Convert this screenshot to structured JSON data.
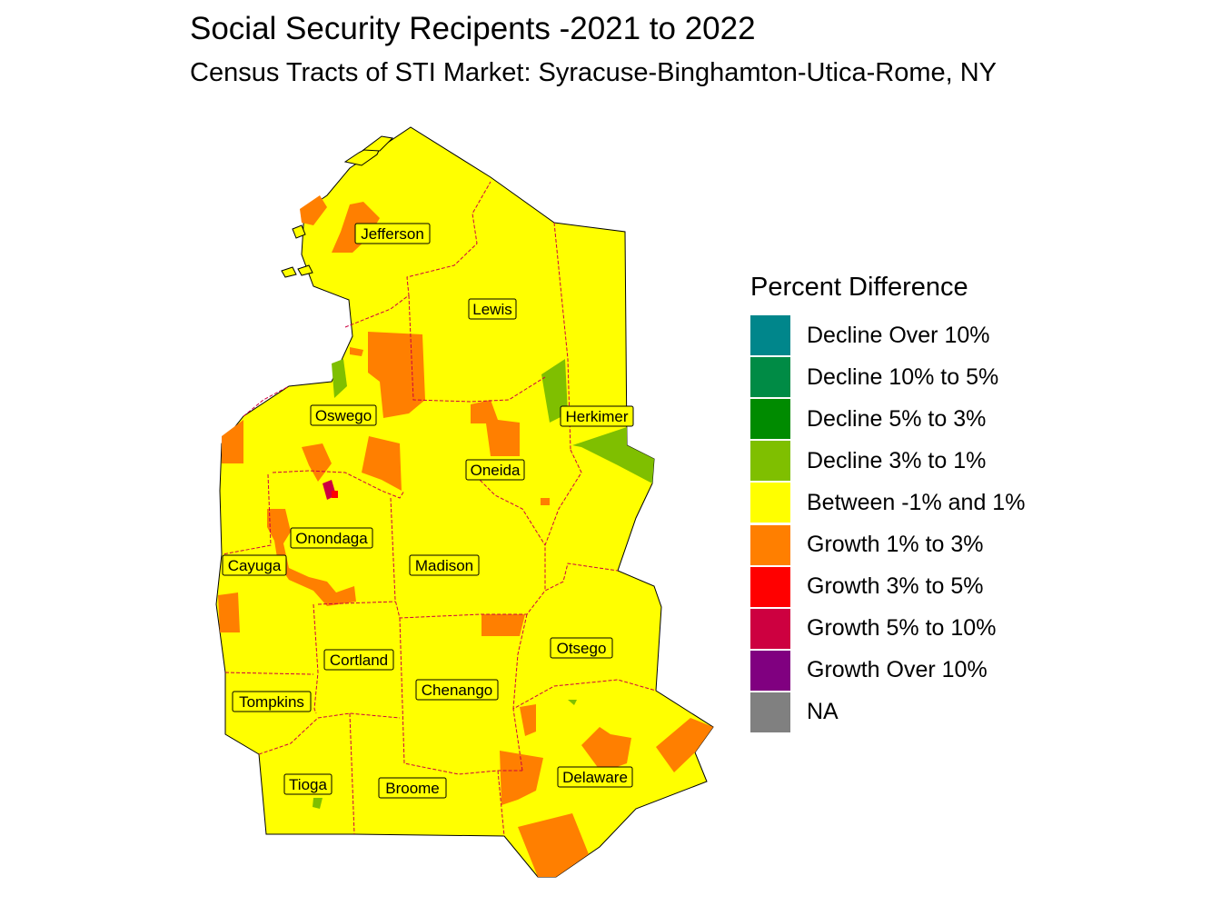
{
  "title": "Social Security Recipents -2021 to 2022",
  "subtitle": "Census Tracts of STI Market: Syracuse-Binghamton-Utica-Rome, NY",
  "legend": {
    "title": "Percent Difference",
    "items": [
      {
        "label": "Decline Over 10%",
        "color": "#00868B"
      },
      {
        "label": "Decline 10% to 5%",
        "color": "#008B45"
      },
      {
        "label": "Decline 5% to 3%",
        "color": "#008B00"
      },
      {
        "label": "Decline 3% to 1%",
        "color": "#7FBF00"
      },
      {
        "label": "Between -1% and 1%",
        "color": "#FFFF00"
      },
      {
        "label": "Growth 1% to 3%",
        "color": "#FF7F00"
      },
      {
        "label": "Growth 3% to 5%",
        "color": "#FF0000"
      },
      {
        "label": "Growth 5% to 10%",
        "color": "#CD0040"
      },
      {
        "label": "Growth Over 10%",
        "color": "#800080"
      },
      {
        "label": "NA",
        "color": "#808080"
      }
    ]
  },
  "counties": [
    {
      "name": "Jefferson"
    },
    {
      "name": "Lewis"
    },
    {
      "name": "Oswego"
    },
    {
      "name": "Herkimer"
    },
    {
      "name": "Oneida"
    },
    {
      "name": "Onondaga"
    },
    {
      "name": "Cayuga"
    },
    {
      "name": "Madison"
    },
    {
      "name": "Otsego"
    },
    {
      "name": "Cortland"
    },
    {
      "name": "Chenango"
    },
    {
      "name": "Tompkins"
    },
    {
      "name": "Tioga"
    },
    {
      "name": "Broome"
    },
    {
      "name": "Delaware"
    }
  ]
}
